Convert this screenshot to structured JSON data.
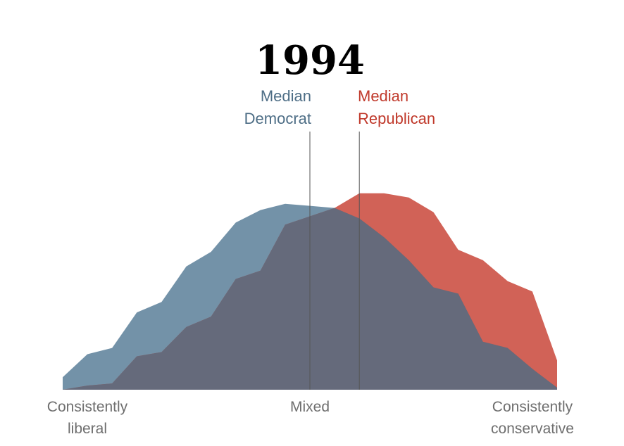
{
  "chart_data": {
    "type": "area",
    "title": "1994",
    "x": [
      0,
      1,
      2,
      3,
      4,
      5,
      6,
      7,
      8,
      9,
      10,
      11,
      12,
      13,
      14,
      15,
      16,
      17,
      18,
      19,
      20
    ],
    "xlim": [
      0,
      20
    ],
    "ylim": [
      0,
      1
    ],
    "series": [
      {
        "name": "Democrat",
        "color": "#5b7f99",
        "values": [
          0.06,
          0.17,
          0.2,
          0.37,
          0.42,
          0.59,
          0.66,
          0.8,
          0.86,
          0.89,
          0.88,
          0.87,
          0.82,
          0.73,
          0.62,
          0.49,
          0.46,
          0.23,
          0.2,
          0.1,
          0.01
        ]
      },
      {
        "name": "Republican",
        "color": "#c9473a",
        "values": [
          0.0,
          0.02,
          0.03,
          0.16,
          0.18,
          0.3,
          0.35,
          0.53,
          0.57,
          0.79,
          0.83,
          0.87,
          0.94,
          0.94,
          0.92,
          0.85,
          0.67,
          0.62,
          0.52,
          0.47,
          0.14
        ]
      }
    ],
    "overlap_color": "#656a7b",
    "medians": [
      {
        "series": "Democrat",
        "x": 10.0,
        "label_line1": "Median",
        "label_line2": "Democrat",
        "color": "#4e6e86"
      },
      {
        "series": "Republican",
        "x": 12.0,
        "label_line1": "Median",
        "label_line2": "Republican",
        "color": "#c0392b"
      }
    ],
    "x_labels": [
      {
        "x": 1,
        "line1": "Consistently",
        "line2": "liberal"
      },
      {
        "x": 10,
        "line1": "Mixed",
        "line2": ""
      },
      {
        "x": 19,
        "line1": "Consistently",
        "line2": "conservative"
      }
    ]
  }
}
